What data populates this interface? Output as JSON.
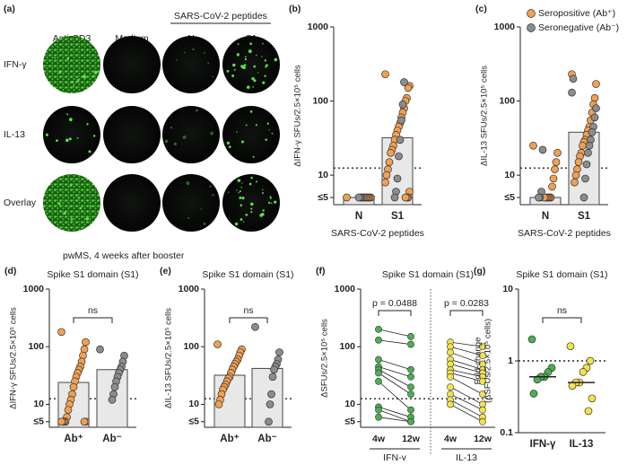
{
  "image_panel": {
    "panel": "(a)",
    "group_header": "SARS-CoV-2 peptides",
    "columns": [
      "Anti-CD3",
      "Medium",
      "N",
      "S1"
    ],
    "rows": [
      "IFN-γ",
      "IL-13",
      "Overlay"
    ],
    "caption": "pwMS, 4 weeks after booster"
  },
  "chart_data": [
    {
      "type": "bar_scatter",
      "panel": "(b)",
      "ylabel": "ΔIFN-γ SFUs/2.5×10⁵ cells",
      "xlabel": "SARS-CoV-2 peptides",
      "log": true,
      "ylim": [
        4,
        1000
      ],
      "yticks": [
        {
          "value": 5,
          "label": "≤5"
        },
        10,
        100,
        1000
      ],
      "threshold": 12.5,
      "colors": [
        "#f0a050",
        "#8c8c8c"
      ],
      "bar_color": "#e8e8e8",
      "groups": [
        {
          "label": "N",
          "bar": 5,
          "pos": [
            5,
            5,
            5,
            5,
            5,
            5,
            5,
            5
          ],
          "neg": [
            5,
            5,
            5
          ]
        },
        {
          "label": "S1",
          "bar": 32,
          "pos": [
            230,
            160,
            150,
            110,
            100,
            80,
            70,
            60,
            50,
            45,
            40,
            35,
            30,
            25,
            22,
            20,
            15,
            12,
            10,
            8,
            6,
            5,
            5,
            5
          ],
          "neg": [
            180,
            90,
            55,
            30,
            18,
            9,
            6,
            5
          ]
        }
      ]
    },
    {
      "type": "bar_scatter",
      "panel": "(c)",
      "ylabel": "ΔIL-13 SFUs/2.5×10⁵ cells",
      "xlabel": "SARS-CoV-2 peptides",
      "log": true,
      "ylim": [
        4,
        1000
      ],
      "yticks": [
        {
          "value": 5,
          "label": "≤5"
        },
        10,
        100,
        1000
      ],
      "threshold": 12.5,
      "colors": [
        "#f0a050",
        "#8c8c8c"
      ],
      "bar_color": "#e8e8e8",
      "legend": [
        "Seropositive (Ab⁺)",
        "Seronegative (Ab⁻)"
      ],
      "groups": [
        {
          "label": "N",
          "bar": 5,
          "pos": [
            25,
            20,
            15,
            12,
            9,
            7,
            5,
            5,
            5,
            5,
            5,
            5
          ],
          "neg": [
            22,
            6,
            5,
            5
          ]
        },
        {
          "label": "S1",
          "bar": 38,
          "pos": [
            230,
            170,
            110,
            90,
            70,
            55,
            45,
            40,
            35,
            30,
            28,
            25,
            20,
            18,
            15,
            12,
            10,
            8
          ],
          "neg": [
            200,
            130,
            80,
            60,
            45,
            38,
            30,
            25,
            20,
            14,
            9,
            5
          ]
        }
      ]
    },
    {
      "type": "bar_scatter",
      "panel": "(d)",
      "title": "Spike S1 domain (S1)",
      "ylabel": "ΔIFN-γ SFUs/2.5×10⁵ cells",
      "log": true,
      "ylim": [
        4,
        1000
      ],
      "yticks": [
        {
          "value": 5,
          "label": "≤5"
        },
        10,
        100,
        1000
      ],
      "threshold": 12.5,
      "colors": [
        "#f0a050",
        "#8c8c8c"
      ],
      "bar_color": "#e8e8e8",
      "annotation": "ns",
      "groups": [
        {
          "label": "Ab⁺",
          "bar": 24,
          "pos": [
            180,
            120,
            90,
            70,
            55,
            45,
            40,
            35,
            30,
            25,
            20,
            15,
            12,
            10,
            8,
            6,
            5,
            5,
            5,
            5,
            5,
            5
          ]
        },
        {
          "label": "Ab⁻",
          "bar": 40,
          "neg": [
            90,
            70,
            55,
            45,
            40,
            35,
            30,
            25,
            20,
            15,
            12
          ]
        }
      ]
    },
    {
      "type": "bar_scatter",
      "panel": "(e)",
      "title": "Spike S1 domain (S1)",
      "ylabel": "ΔIL-13 SFUs/2.5×10⁵ cells",
      "log": true,
      "ylim": [
        4,
        1000
      ],
      "yticks": [
        {
          "value": 5,
          "label": "≤5"
        },
        10,
        100,
        1000
      ],
      "threshold": 12.5,
      "colors": [
        "#f0a050",
        "#8c8c8c"
      ],
      "bar_color": "#e8e8e8",
      "annotation": "ns",
      "groups": [
        {
          "label": "Ab⁺",
          "bar": 32,
          "pos": [
            110,
            90,
            80,
            70,
            60,
            55,
            50,
            45,
            40,
            35,
            30,
            28,
            25,
            22,
            20,
            18,
            15,
            12,
            10
          ]
        },
        {
          "label": "Ab⁻",
          "bar": 42,
          "neg": [
            220,
            80,
            60,
            50,
            45,
            40,
            30,
            15,
            10,
            5
          ]
        }
      ]
    },
    {
      "type": "paired",
      "panel": "(f)",
      "title": "Spike S1 domain (S1)",
      "ylabel": "ΔSFUs/2.5×10⁵ cells",
      "log": true,
      "ylim": [
        4,
        1000
      ],
      "yticks": [
        {
          "value": 5,
          "label": "≤5"
        },
        10,
        100,
        1000
      ],
      "threshold": 12.5,
      "categories": [
        "4w",
        "12w",
        "4w",
        "12w"
      ],
      "series": [
        {
          "name": "IFN-γ",
          "color": "#4caf50",
          "annotation": "p = 0.0488",
          "w4": [
            200,
            130,
            60,
            45,
            40,
            35,
            25,
            9,
            8,
            6
          ],
          "w12": [
            150,
            110,
            40,
            30,
            20,
            15,
            8,
            6,
            5,
            5
          ]
        },
        {
          "name": "IL-13",
          "color": "#f2e24c",
          "annotation": "p = 0.0283",
          "w4": [
            120,
            100,
            80,
            60,
            50,
            40,
            35,
            30,
            20,
            15,
            12,
            10
          ],
          "w12": [
            100,
            70,
            50,
            40,
            35,
            30,
            25,
            15,
            10,
            8,
            6,
            5
          ]
        }
      ]
    },
    {
      "type": "dot_median",
      "panel": "(g)",
      "title": "Spike S1 domain (S1)",
      "ylabel": [
        "Fold-change",
        "(ΔSFUs/2.5×10⁵ cells)"
      ],
      "log": true,
      "ylim": [
        0.1,
        10
      ],
      "yticks": [
        0.1,
        1,
        10
      ],
      "threshold": 1,
      "annotation": "ns",
      "groups": [
        {
          "label": "IFN-γ",
          "color": "#4caf50",
          "median": 0.6,
          "values": [
            2,
            0.8,
            0.7,
            0.6,
            0.6,
            0.55,
            0.35
          ]
        },
        {
          "label": "IL-13",
          "color": "#f2e24c",
          "median": 0.5,
          "values": [
            1.6,
            1.0,
            0.8,
            0.7,
            0.5,
            0.5,
            0.45,
            0.3,
            0.2
          ]
        }
      ]
    }
  ]
}
